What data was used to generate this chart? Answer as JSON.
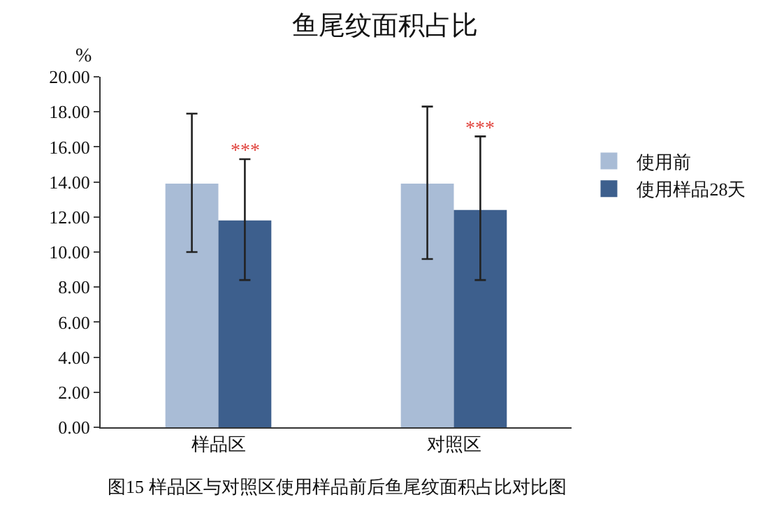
{
  "chart_data": {
    "type": "bar",
    "title": "鱼尾纹面积占比",
    "ylabel": "%",
    "categories": [
      "样品区",
      "对照区"
    ],
    "series": [
      {
        "name": "使用前",
        "color": "#a9bcd6",
        "values": [
          13.9,
          13.9
        ],
        "errors": [
          [
            10.0,
            17.9
          ],
          [
            9.6,
            18.3
          ]
        ]
      },
      {
        "name": "使用样品28天",
        "color": "#3d5f8d",
        "values": [
          11.8,
          12.4
        ],
        "errors": [
          [
            8.4,
            15.3
          ],
          [
            8.4,
            16.6
          ]
        ]
      }
    ],
    "ylim": [
      0,
      20
    ],
    "yticks": [
      {
        "value": 0,
        "label": "0.00"
      },
      {
        "value": 2,
        "label": "2.00"
      },
      {
        "value": 4,
        "label": "4.00"
      },
      {
        "value": 6,
        "label": "6.00"
      },
      {
        "value": 8,
        "label": "8.00"
      },
      {
        "value": 10,
        "label": "10.00"
      },
      {
        "value": 12,
        "label": "12.00"
      },
      {
        "value": 14,
        "label": "14.00"
      },
      {
        "value": 16,
        "label": "16.00"
      },
      {
        "value": 18,
        "label": "18.00"
      },
      {
        "value": 20,
        "label": "20.00"
      }
    ],
    "grid": false,
    "legend": "right",
    "annotations": [
      "***",
      "***",
      "图15 样品区与对照区使用样品前后鱼尾纹面积占比对比图"
    ]
  }
}
